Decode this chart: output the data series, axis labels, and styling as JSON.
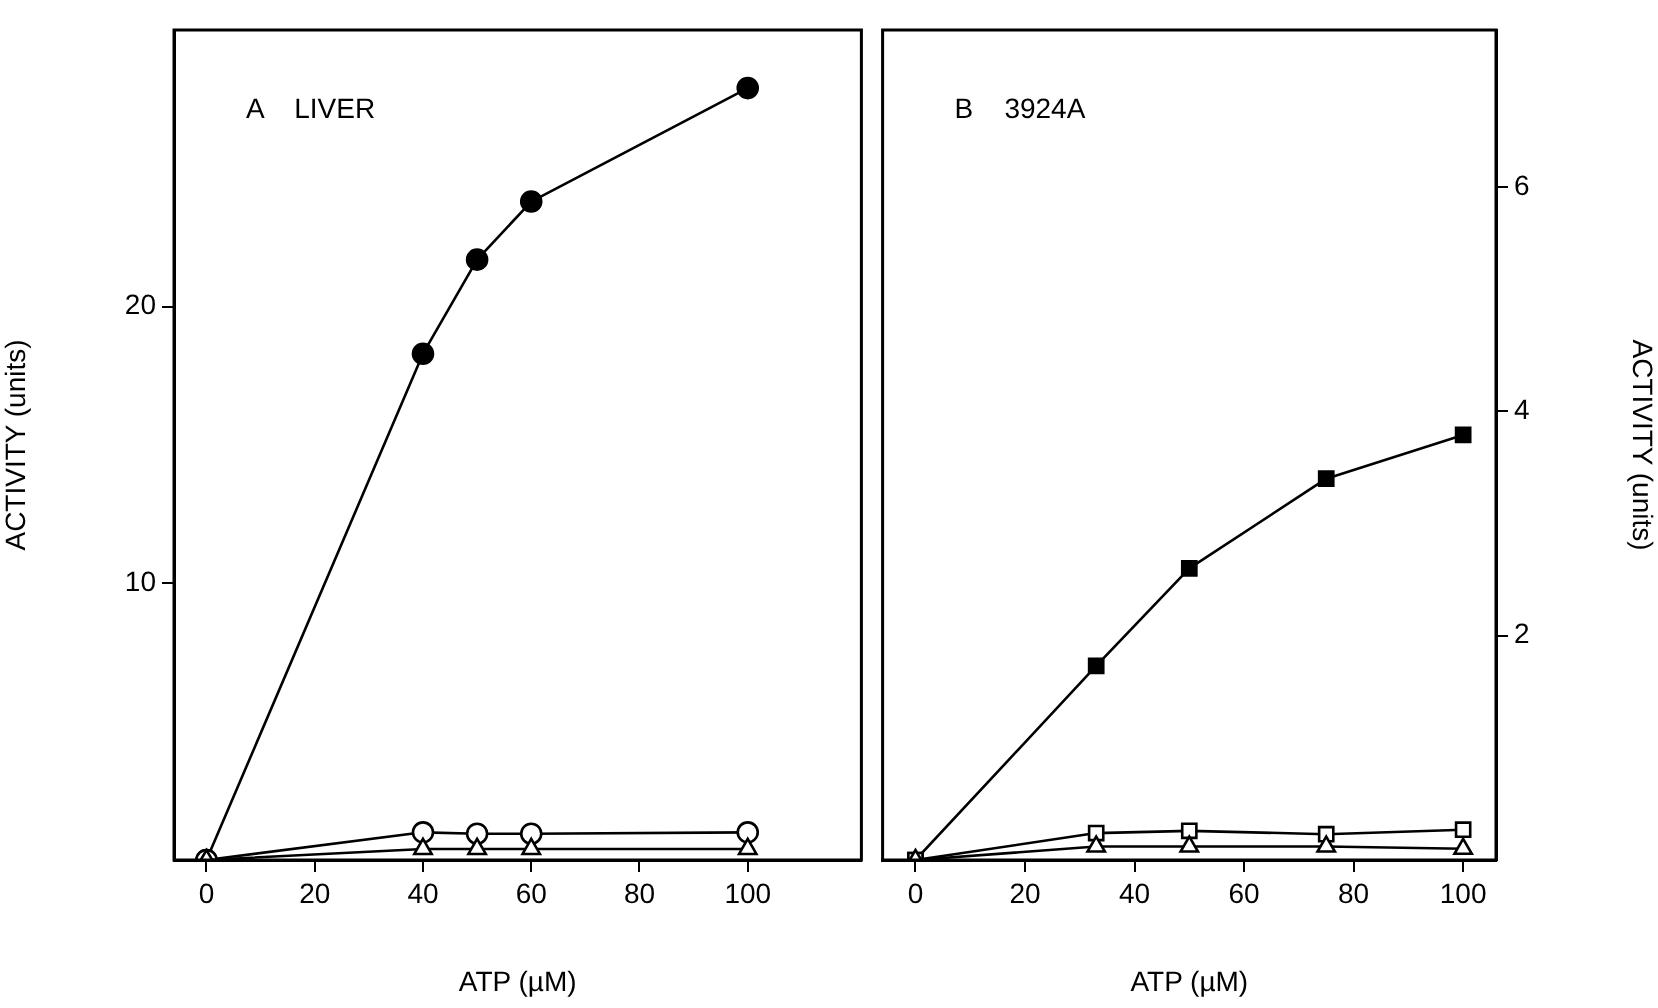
{
  "chart_data": [
    {
      "type": "line",
      "title": "A    LIVER",
      "xlabel": "ATP (µM)",
      "ylabel": "ACTIVITY (units)",
      "x": [
        0,
        40,
        50,
        60,
        100
      ],
      "xlim": [
        -6,
        121
      ],
      "xticks": [
        0,
        20,
        40,
        60,
        80,
        100
      ],
      "ylim": [
        0,
        30
      ],
      "yticks": [
        10,
        20
      ],
      "grid": false,
      "legend": false,
      "series": [
        {
          "color": "#000000",
          "marker": "circle",
          "values": [
            0,
            18.3,
            21.7,
            23.8,
            27.9
          ]
        },
        {
          "color": "#ffffff",
          "marker": "circle",
          "values": [
            0,
            1.0,
            0.95,
            0.95,
            1.0
          ]
        },
        {
          "color": "#ffffff",
          "marker": "triangle",
          "values": [
            0,
            0.4,
            0.4,
            0.4,
            0.4
          ]
        }
      ]
    },
    {
      "type": "line",
      "title": "B    3924A",
      "xlabel": "ATP (µM)",
      "y2label": "ACTIVITY (units)",
      "x": [
        0,
        33,
        50,
        75,
        100
      ],
      "xlim": [
        -6,
        106
      ],
      "xticks": [
        0,
        20,
        40,
        60,
        80,
        100
      ],
      "y2lim": [
        0,
        7.4
      ],
      "y2ticks": [
        2,
        4,
        6
      ],
      "grid": false,
      "legend": false,
      "series": [
        {
          "color": "#000000",
          "marker": "square",
          "axis": "y2",
          "values": [
            0,
            1.73,
            2.6,
            3.4,
            3.79
          ]
        },
        {
          "color": "#ffffff",
          "marker": "square",
          "axis": "y2",
          "values": [
            0,
            0.24,
            0.26,
            0.23,
            0.27
          ]
        },
        {
          "color": "#ffffff",
          "marker": "triangle",
          "axis": "y2",
          "values": [
            0,
            0.12,
            0.12,
            0.12,
            0.1
          ]
        }
      ]
    }
  ]
}
